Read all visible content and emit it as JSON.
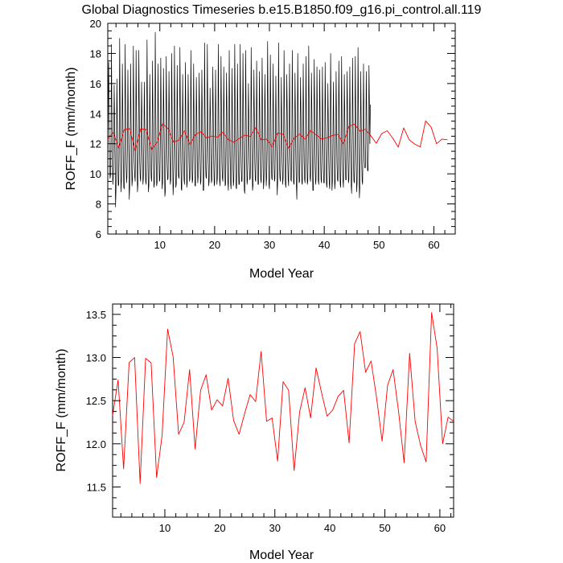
{
  "title": "Global Diagnostics Timeseries b.e15.B1850.f09_g16.pi_control.all.119",
  "colors": {
    "monthly": "#000000",
    "annual": "#ff0000"
  },
  "chart_data": [
    {
      "type": "line",
      "xlabel": "Model Year",
      "ylabel": "ROFF_F (mm/month)",
      "xlim": [
        0.5,
        63.9
      ],
      "ylim": [
        6,
        20
      ],
      "xticks": [
        10,
        20,
        30,
        40,
        50,
        60
      ],
      "yticks": [
        6,
        8,
        10,
        12,
        14,
        16,
        18,
        20
      ],
      "series": [
        {
          "color": "black",
          "x_start": 0.5,
          "x_step": 0.08333,
          "values": [
            12.0,
            15.0,
            17.4,
            13.2,
            10.6,
            9.7,
            9.9,
            12.0,
            18.6,
            14.2,
            10.9,
            9.3,
            9.7,
            12.0,
            15.9,
            13.6,
            10.9,
            7.8,
            8.9,
            12.0,
            16.3,
            13.6,
            10.5,
            9.2,
            9.3,
            12.0,
            19.0,
            14.6,
            11.0,
            8.8,
            9.6,
            12.0,
            17.3,
            13.9,
            10.8,
            9.1,
            9.0,
            12.0,
            18.6,
            14.7,
            10.6,
            9.4,
            9.8,
            12.0,
            16.9,
            13.8,
            10.9,
            8.3,
            9.1,
            12.0,
            17.3,
            13.7,
            11.0,
            9.2,
            9.6,
            12.0,
            18.5,
            14.5,
            10.8,
            9.8,
            9.5,
            12.0,
            18.2,
            13.9,
            11.0,
            8.8,
            9.3,
            12.0,
            18.2,
            14.4,
            10.8,
            9.7,
            9.5,
            12.0,
            16.1,
            13.6,
            10.8,
            9.3,
            9.7,
            12.0,
            16.1,
            13.4,
            10.9,
            9.5,
            9.3,
            12.0,
            18.9,
            14.4,
            10.6,
            8.8,
            9.2,
            12.0,
            16.6,
            13.6,
            10.8,
            9.7,
            9.5,
            12.0,
            17.5,
            13.8,
            10.9,
            9.1,
            9.3,
            12.0,
            19.4,
            14.6,
            10.8,
            9.2,
            9.4,
            12.0,
            17.3,
            13.8,
            11.0,
            9.5,
            9.6,
            12.0,
            17.7,
            14.3,
            10.9,
            9.0,
            9.4,
            12.0,
            17.0,
            13.9,
            10.9,
            8.5,
            8.8,
            12.0,
            17.8,
            14.0,
            10.7,
            9.6,
            9.7,
            12.0,
            16.8,
            13.9,
            10.9,
            9.3,
            9.6,
            12.0,
            18.0,
            14.1,
            11.0,
            8.6,
            9.3,
            12.0,
            18.5,
            14.0,
            10.6,
            9.1,
            9.3,
            12.0,
            17.2,
            13.9,
            10.7,
            9.8,
            9.7,
            12.0,
            18.4,
            14.4,
            10.9,
            9.0,
            8.9,
            12.0,
            16.6,
            13.2,
            10.9,
            9.6,
            9.3,
            12.0,
            17.4,
            13.9,
            10.8,
            9.1,
            9.4,
            12.0,
            16.6,
            13.8,
            10.8,
            9.5,
            9.7,
            12.0,
            18.2,
            14.3,
            10.8,
            9.4,
            9.6,
            12.0,
            17.3,
            13.6,
            10.9,
            9.2,
            9.2,
            12.0,
            16.4,
            13.8,
            10.8,
            9.4,
            9.8,
            12.0,
            16.7,
            14.0,
            10.9,
            9.3,
            9.5,
            12.0,
            16.9,
            14.0,
            10.9,
            8.9,
            8.9,
            12.0,
            18.7,
            14.3,
            10.8,
            9.8,
            9.7,
            12.0,
            18.6,
            14.3,
            10.9,
            9.2,
            9.5,
            12.0,
            15.7,
            13.6,
            10.8,
            9.4,
            9.6,
            12.0,
            17.1,
            14.1,
            10.8,
            9.2,
            9.4,
            12.0,
            16.9,
            13.7,
            10.8,
            9.3,
            9.7,
            12.0,
            18.6,
            14.3,
            10.8,
            9.5,
            9.2,
            12.0,
            17.8,
            14.3,
            10.7,
            9.7,
            9.5,
            12.0,
            17.1,
            13.7,
            11.0,
            9.2,
            9.3,
            12.0,
            16.7,
            14.3,
            10.8,
            9.4,
            8.9,
            12.0,
            18.2,
            13.9,
            11.0,
            9.3,
            9.0,
            12.0,
            17.0,
            14.0,
            10.6,
            9.2,
            9.5,
            12.0,
            18.6,
            14.5,
            10.8,
            9.1,
            9.0,
            12.0,
            17.3,
            13.6,
            10.7,
            9.3,
            9.3,
            12.0,
            18.6,
            14.3,
            10.7,
            9.5,
            9.5,
            12.0,
            18.0,
            14.4,
            10.9,
            8.9,
            8.7,
            12.0,
            18.2,
            13.9,
            10.9,
            9.3,
            9.6,
            12.0,
            16.0,
            13.7,
            10.8,
            9.6,
            9.7,
            12.0,
            18.4,
            14.1,
            10.9,
            8.9,
            9.2,
            12.0,
            16.9,
            14.0,
            10.8,
            9.6,
            9.5,
            12.0,
            17.5,
            13.8,
            10.7,
            9.3,
            9.3,
            12.0,
            16.8,
            13.9,
            10.9,
            9.6,
            9.4,
            12.0,
            17.7,
            14.2,
            10.6,
            9.0,
            9.5,
            12.0,
            16.6,
            13.9,
            10.8,
            9.2,
            9.8,
            12.0,
            18.8,
            14.5,
            10.9,
            9.3,
            9.0,
            12.0,
            17.9,
            14.5,
            10.9,
            9.7,
            9.6,
            12.0,
            17.3,
            13.7,
            10.6,
            9.5,
            9.7,
            12.0,
            16.5,
            13.3,
            10.8,
            8.6,
            9.4,
            12.0,
            18.7,
            14.3,
            10.6,
            9.7,
            9.5,
            12.0,
            16.4,
            13.5,
            10.7,
            9.3,
            9.7,
            12.0,
            18.2,
            14.2,
            10.7,
            9.3,
            9.1,
            12.0,
            16.6,
            14.1,
            11.0,
            9.6,
            9.2,
            12.0,
            17.3,
            13.6,
            10.9,
            9.6,
            9.5,
            12.0,
            18.2,
            14.0,
            11.0,
            9.4,
            9.3,
            12.0,
            16.7,
            13.8,
            10.9,
            9.2,
            8.3,
            12.0,
            18.0,
            14.2,
            10.6,
            9.4,
            9.5,
            12.0,
            16.4,
            14.2,
            10.9,
            9.4,
            9.3,
            12.0,
            17.3,
            13.6,
            10.8,
            9.6,
            9.4,
            12.0,
            17.8,
            13.9,
            10.9,
            9.3,
            9.5,
            12.0,
            18.5,
            14.6,
            11.0,
            9.7,
            9.5,
            12.0,
            16.7,
            14.2,
            10.9,
            8.9,
            8.9,
            12.0,
            17.6,
            14.4,
            10.7,
            9.3,
            9.6,
            12.0,
            17.1,
            14.0,
            10.9,
            9.5,
            9.3,
            12.0,
            16.9,
            13.8,
            10.9,
            9.6,
            9.4,
            12.0,
            17.1,
            13.4,
            10.7,
            9.4,
            9.4,
            12.0,
            17.4,
            13.9,
            10.8,
            9.3,
            9.1,
            12.0,
            16.0,
            13.4,
            10.8,
            9.3,
            9.0,
            12.0,
            18.0,
            14.4,
            10.6,
            8.9,
            9.5,
            12.0,
            16.1,
            13.4,
            10.8,
            9.0,
            9.4,
            12.0,
            16.8,
            13.7,
            10.7,
            9.6,
            9.5,
            12.0,
            17.5,
            14.2,
            10.9,
            9.3,
            9.1,
            12.0,
            17.8,
            13.7,
            10.8,
            9.5,
            9.1,
            12.0,
            16.6,
            13.8,
            10.7,
            9.6,
            9.6,
            12.0,
            16.8,
            14.3,
            10.9,
            9.4,
            9.6,
            12.0,
            17.1,
            13.6,
            10.9,
            9.2,
            8.7,
            12.0,
            17.7,
            14.0,
            10.8,
            9.5,
            9.4,
            12.0,
            17.8,
            14.0,
            10.8,
            8.8,
            9.4,
            12.0,
            18.4,
            14.5,
            10.8,
            8.4,
            9.1,
            12.0,
            16.8,
            13.3,
            10.8,
            9.5,
            9.3,
            12.0,
            17.3,
            13.8,
            10.8,
            10.4,
            10.4,
            12.0,
            16.8,
            14.3,
            11.0,
            10.2,
            10.2,
            12.0,
            17.2,
            14.5,
            12.0,
            14.6
          ]
        },
        {
          "color": "red",
          "x_start": 0.5,
          "x_step": 1,
          "values": [
            12.33,
            12.74,
            11.71,
            12.94,
            13.0,
            11.54,
            12.99,
            12.94,
            11.61,
            12.1,
            13.33,
            13.01,
            12.11,
            12.25,
            12.86,
            11.94,
            12.62,
            12.8,
            12.39,
            12.51,
            12.44,
            12.76,
            12.27,
            12.11,
            12.35,
            12.57,
            12.49,
            13.07,
            12.26,
            12.3,
            11.8,
            12.72,
            12.62,
            11.69,
            12.37,
            12.65,
            12.3,
            12.88,
            12.59,
            12.32,
            12.39,
            12.55,
            12.62,
            12.01,
            13.16,
            13.3,
            12.83,
            12.96,
            12.53,
            12.03,
            12.68,
            12.86,
            12.37,
            11.78,
            13.05,
            12.26,
            11.98,
            11.79,
            13.52,
            13.11,
            12.0,
            12.31,
            12.26
          ]
        }
      ]
    },
    {
      "type": "line",
      "xlabel": "Model Year",
      "ylabel": "ROFF_F (mm/month)",
      "xlim": [
        0.5,
        62.5
      ],
      "ylim": [
        11.15,
        13.62
      ],
      "xticks": [
        10,
        20,
        30,
        40,
        50,
        60
      ],
      "yticks": [
        11.5,
        12.0,
        12.5,
        13.0,
        13.5
      ],
      "ytick_labels": [
        "11.5",
        "12.0",
        "12.5",
        "13.0",
        "13.5"
      ],
      "series": [
        {
          "color": "red",
          "x_start": 0.5,
          "x_step": 1,
          "values": [
            12.33,
            12.74,
            11.71,
            12.94,
            13.0,
            11.54,
            12.99,
            12.94,
            11.61,
            12.1,
            13.33,
            13.01,
            12.11,
            12.25,
            12.86,
            11.94,
            12.62,
            12.8,
            12.39,
            12.51,
            12.44,
            12.76,
            12.27,
            12.11,
            12.35,
            12.57,
            12.49,
            13.07,
            12.26,
            12.3,
            11.8,
            12.72,
            12.62,
            11.69,
            12.37,
            12.65,
            12.3,
            12.88,
            12.59,
            12.32,
            12.39,
            12.55,
            12.62,
            12.01,
            13.16,
            13.3,
            12.83,
            12.96,
            12.53,
            12.03,
            12.68,
            12.86,
            12.37,
            11.78,
            13.05,
            12.26,
            11.98,
            11.79,
            13.52,
            13.11,
            12.0,
            12.31,
            12.26
          ]
        }
      ]
    }
  ]
}
